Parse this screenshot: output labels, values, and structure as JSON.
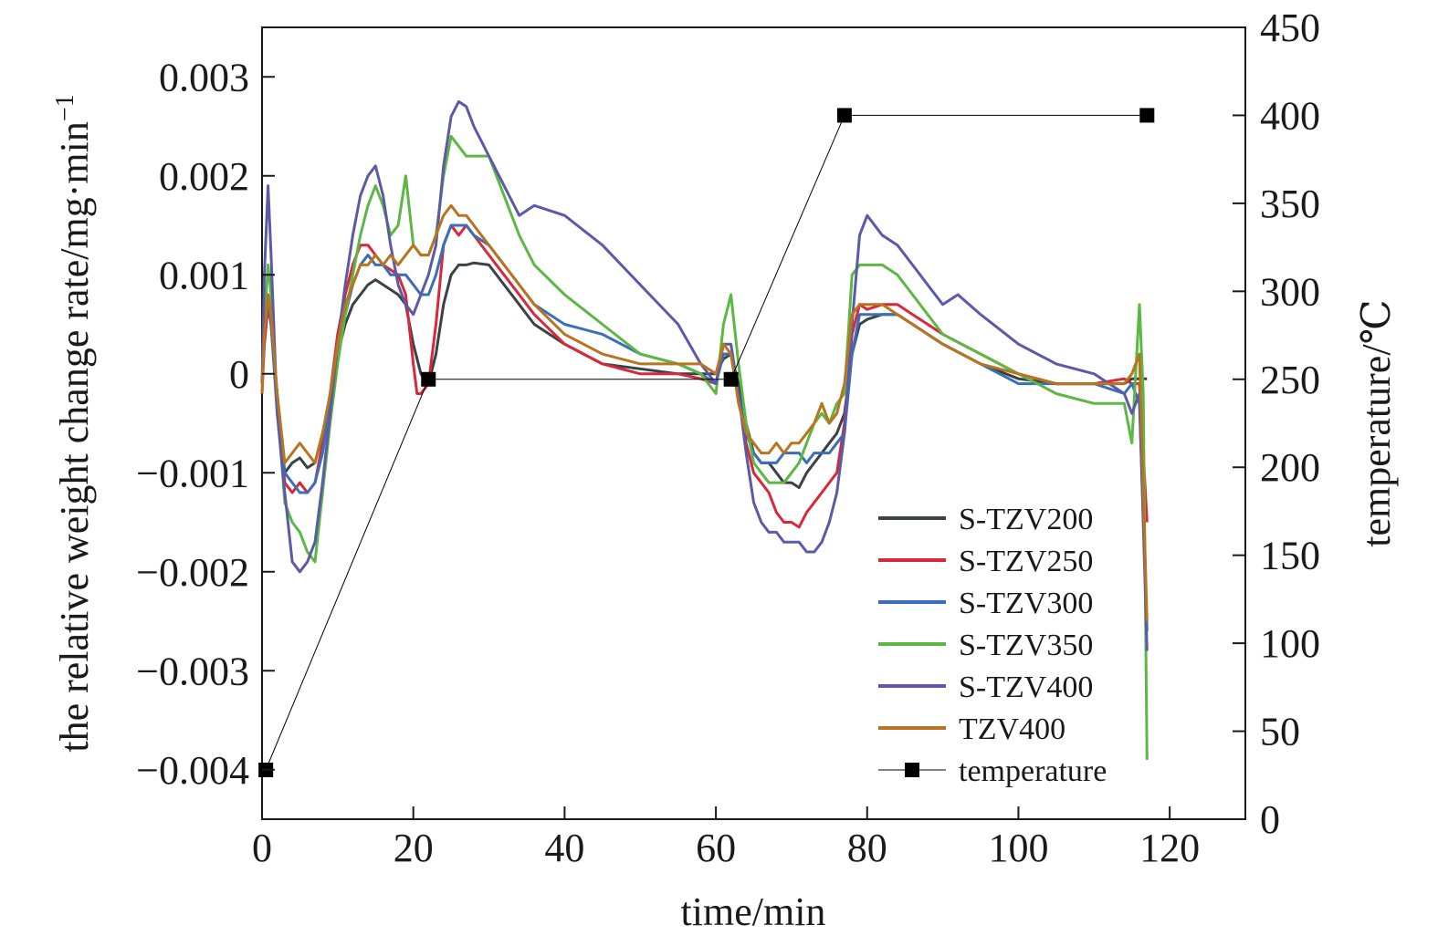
{
  "chart_data": {
    "type": "line",
    "xlabel": "time/min",
    "ylabel": "the relative weight change rate/mg·min",
    "ylabel_sup": "−1",
    "y2label": "temperature/℃",
    "xlim": [
      0,
      130
    ],
    "ylim": [
      -0.0045,
      0.0035
    ],
    "y2lim": [
      0,
      450
    ],
    "x_ticks": [
      0,
      20,
      40,
      60,
      80,
      100,
      120
    ],
    "x_tick_labels": [
      "0",
      "20",
      "40",
      "60",
      "80",
      "100",
      "120"
    ],
    "y_ticks": [
      0.003,
      0.002,
      0.001,
      0,
      -0.001,
      -0.002,
      -0.003,
      -0.004
    ],
    "y_tick_labels": [
      "0.003",
      "0.002",
      "0.001",
      "0",
      "−0.001",
      "−0.002",
      "−0.003",
      "−0.004"
    ],
    "y2_ticks": [
      450,
      400,
      350,
      300,
      250,
      200,
      150,
      100,
      50,
      0
    ],
    "y2_tick_labels": [
      "450",
      "400",
      "350",
      "300",
      "250",
      "200",
      "150",
      "100",
      "50",
      "0"
    ],
    "grid": false,
    "legend_position": "bottom-right",
    "series": [
      {
        "name": "S-TZV200",
        "color": "#3a4246",
        "axis": "left",
        "x": [
          0,
          0.3,
          0.8,
          1.2,
          2,
          3,
          4,
          5,
          6,
          7,
          8,
          9,
          10,
          11,
          12,
          13,
          14,
          15,
          16,
          17,
          18,
          19,
          20,
          21,
          22,
          23,
          24,
          25,
          26,
          27,
          28,
          30,
          32,
          34,
          36,
          40,
          45,
          50,
          55,
          58,
          60,
          61,
          62,
          63,
          64,
          65,
          66,
          67,
          68,
          69,
          70,
          71,
          72,
          73,
          74,
          75,
          76,
          77,
          78,
          79,
          80,
          82,
          84,
          86,
          88,
          90,
          95,
          100,
          105,
          110,
          114,
          115,
          116,
          117
        ],
        "y": [
          -0.0001,
          0.0003,
          0.0007,
          0.0005,
          -0.0002,
          -0.001,
          -0.0009,
          -0.00085,
          -0.00095,
          -0.0009,
          -0.0006,
          -0.0003,
          0.0002,
          0.0005,
          0.0007,
          0.0008,
          0.0009,
          0.00095,
          0.0009,
          0.00085,
          0.0008,
          0.0007,
          0.0003,
          0.0,
          -0.0001,
          0.0002,
          0.0007,
          0.001,
          0.0011,
          0.0011,
          0.00112,
          0.0011,
          0.0009,
          0.0007,
          0.0005,
          0.0003,
          0.0001,
          5e-05,
          0.0,
          0.0,
          0.0,
          0.00015,
          0.0002,
          -0.0001,
          -0.0005,
          -0.0008,
          -0.0009,
          -0.0009,
          -0.001,
          -0.0011,
          -0.0011,
          -0.00115,
          -0.001,
          -0.0009,
          -0.0008,
          -0.0007,
          -0.0006,
          -0.0004,
          0.0002,
          0.0005,
          0.00055,
          0.0006,
          0.0006,
          0.0005,
          0.0004,
          0.0003,
          0.0001,
          -5e-05,
          -0.0001,
          -0.0001,
          -0.0001,
          -5e-05,
          -5e-05,
          -5e-05
        ]
      },
      {
        "name": "S-TZV250",
        "color": "#d8283c",
        "axis": "left",
        "x": [
          0,
          0.3,
          0.8,
          1.2,
          2,
          3,
          4,
          5,
          6,
          7,
          8,
          9,
          10,
          11,
          12,
          13,
          14,
          15,
          16,
          17,
          18,
          19,
          20,
          20.5,
          21,
          22,
          23,
          24,
          25,
          26,
          27,
          28,
          30,
          32,
          34,
          36,
          40,
          45,
          50,
          55,
          58,
          60,
          61,
          62,
          63,
          64,
          65,
          66,
          67,
          68,
          69,
          70,
          71,
          72,
          73,
          74,
          75,
          76,
          77,
          78,
          79,
          80,
          82,
          84,
          86,
          88,
          90,
          95,
          100,
          105,
          110,
          114,
          115,
          116,
          117
        ],
        "y": [
          -0.0002,
          0.0003,
          0.0007,
          0.0005,
          -0.0003,
          -0.0011,
          -0.0012,
          -0.0011,
          -0.0012,
          -0.0011,
          -0.0007,
          -0.0002,
          0.0004,
          0.0008,
          0.0011,
          0.0013,
          0.0013,
          0.0012,
          0.0011,
          0.00105,
          0.001,
          0.0008,
          0.0001,
          -0.0002,
          -0.0002,
          -0.0001,
          0.0005,
          0.0013,
          0.0015,
          0.0014,
          0.0015,
          0.0014,
          0.0012,
          0.001,
          0.0008,
          0.0006,
          0.0003,
          0.0001,
          0.0,
          0.0,
          -5e-05,
          -0.0001,
          0.0002,
          0.0002,
          -0.0002,
          -0.0007,
          -0.001,
          -0.0011,
          -0.0012,
          -0.0014,
          -0.0015,
          -0.0015,
          -0.00155,
          -0.0014,
          -0.0013,
          -0.0012,
          -0.0011,
          -0.001,
          -0.0005,
          0.0004,
          0.0007,
          0.00065,
          0.0007,
          0.0007,
          0.0006,
          0.0005,
          0.0004,
          0.0002,
          0.0,
          -0.0001,
          -0.0001,
          -5e-05,
          -0.0001,
          -0.0001,
          -0.0015
        ]
      },
      {
        "name": "S-TZV300",
        "color": "#3a6fb7",
        "axis": "left",
        "x": [
          0,
          0.3,
          0.8,
          1.2,
          2,
          3,
          4,
          5,
          6,
          7,
          8,
          9,
          10,
          11,
          12,
          13,
          14,
          15,
          16,
          17,
          18,
          19,
          20,
          21,
          22,
          23,
          24,
          25,
          26,
          27,
          28,
          30,
          32,
          34,
          36,
          40,
          45,
          50,
          55,
          58,
          60,
          61,
          62,
          63,
          64,
          65,
          66,
          67,
          68,
          69,
          70,
          71,
          72,
          73,
          74,
          75,
          76,
          77,
          78,
          79,
          80,
          82,
          84,
          86,
          88,
          90,
          95,
          100,
          105,
          110,
          114,
          115,
          116,
          117
        ],
        "y": [
          -0.0001,
          0.0004,
          0.0008,
          0.0005,
          -0.0004,
          -0.001,
          -0.0011,
          -0.0012,
          -0.0012,
          -0.0011,
          -0.0008,
          -0.0003,
          0.0002,
          0.0006,
          0.0009,
          0.0011,
          0.0012,
          0.0011,
          0.0011,
          0.001,
          0.001,
          0.001,
          0.0009,
          0.0008,
          0.0008,
          0.001,
          0.0013,
          0.0015,
          0.0015,
          0.0015,
          0.0014,
          0.0013,
          0.0011,
          0.0009,
          0.0007,
          0.0005,
          0.0004,
          0.0002,
          0.0001,
          0.0,
          -0.0001,
          0.0002,
          0.0002,
          -0.0002,
          -0.0006,
          -0.0008,
          -0.0009,
          -0.0009,
          -0.0009,
          -0.0008,
          -0.0008,
          -0.0008,
          -0.0009,
          -0.0008,
          -0.0008,
          -0.0008,
          -0.0007,
          -0.0006,
          0.0002,
          0.0006,
          0.0006,
          0.0006,
          0.0006,
          0.0005,
          0.0004,
          0.0003,
          0.0001,
          -0.0001,
          -0.0001,
          -0.0001,
          -0.0002,
          -0.0001,
          -0.0003,
          -0.0026
        ]
      },
      {
        "name": "S-TZV350",
        "color": "#5cb843",
        "axis": "left",
        "x": [
          0,
          0.3,
          0.8,
          1.2,
          2,
          3,
          4,
          5,
          6,
          7,
          8,
          9,
          10,
          11,
          12,
          13,
          14,
          15,
          16,
          17,
          18,
          19,
          20,
          21,
          22,
          23,
          24,
          25,
          26,
          27,
          28,
          30,
          32,
          34,
          36,
          40,
          45,
          50,
          55,
          58,
          60,
          61,
          62,
          63,
          64,
          65,
          66,
          67,
          68,
          69,
          70,
          71,
          72,
          73,
          74,
          75,
          76,
          77,
          78,
          79,
          80,
          82,
          84,
          86,
          88,
          90,
          95,
          100,
          105,
          110,
          114,
          115,
          116,
          116.5,
          117
        ],
        "y": [
          -0.0001,
          0.0005,
          0.0011,
          0.0008,
          -0.0003,
          -0.0013,
          -0.0015,
          -0.0016,
          -0.0018,
          -0.0019,
          -0.0012,
          -0.0005,
          0.0001,
          0.0006,
          0.001,
          0.0014,
          0.0017,
          0.0019,
          0.0017,
          0.0014,
          0.0015,
          0.002,
          0.0013,
          0.0012,
          0.0012,
          0.0014,
          0.002,
          0.0024,
          0.0023,
          0.0022,
          0.0022,
          0.0022,
          0.0018,
          0.0014,
          0.0011,
          0.0008,
          0.0005,
          0.0002,
          0.0001,
          0.0,
          -0.0002,
          0.0005,
          0.0008,
          0.0001,
          -0.0005,
          -0.0009,
          -0.001,
          -0.0011,
          -0.0011,
          -0.0011,
          -0.001,
          -0.0009,
          -0.0007,
          -0.0005,
          -0.0004,
          -0.0005,
          -0.0003,
          -0.0002,
          0.001,
          0.0011,
          0.0011,
          0.0011,
          0.001,
          0.0008,
          0.0006,
          0.0004,
          0.0002,
          0.0,
          -0.0002,
          -0.0003,
          -0.0003,
          -0.0007,
          0.0007,
          -0.0002,
          -0.0039
        ]
      },
      {
        "name": "S-TZV400",
        "color": "#5a5aa8",
        "axis": "left",
        "x": [
          0,
          0.3,
          0.8,
          1.2,
          2,
          3,
          4,
          5,
          6,
          7,
          8,
          9,
          10,
          11,
          12,
          13,
          14,
          15,
          16,
          17,
          18,
          19,
          20,
          21,
          22,
          23,
          24,
          25,
          26,
          27,
          28,
          30,
          32,
          34,
          36,
          40,
          45,
          50,
          55,
          58,
          60,
          61,
          62,
          63,
          64,
          65,
          66,
          67,
          68,
          69,
          70,
          71,
          72,
          73,
          74,
          75,
          76,
          77,
          78,
          79,
          80,
          82,
          84,
          86,
          88,
          90,
          92,
          95,
          100,
          105,
          110,
          114,
          115,
          116,
          117
        ],
        "y": [
          -0.0001,
          0.001,
          0.0019,
          0.0012,
          -0.0004,
          -0.0012,
          -0.0019,
          -0.002,
          -0.0019,
          -0.0017,
          -0.0011,
          -0.0004,
          0.0003,
          0.0009,
          0.0014,
          0.0018,
          0.002,
          0.0021,
          0.0018,
          0.0013,
          0.0009,
          0.0007,
          0.0006,
          0.0008,
          0.001,
          0.0013,
          0.0021,
          0.0026,
          0.00275,
          0.0027,
          0.0025,
          0.0022,
          0.0019,
          0.0016,
          0.0017,
          0.0016,
          0.0013,
          0.0009,
          0.0005,
          0.0001,
          -0.0001,
          0.0003,
          0.0003,
          -0.0002,
          -0.0008,
          -0.0013,
          -0.0015,
          -0.0016,
          -0.0016,
          -0.0017,
          -0.0017,
          -0.0017,
          -0.0018,
          -0.0018,
          -0.0017,
          -0.0015,
          -0.0012,
          -0.0006,
          0.0005,
          0.0014,
          0.0016,
          0.0014,
          0.0013,
          0.0011,
          0.0009,
          0.0007,
          0.0008,
          0.0006,
          0.0003,
          0.0001,
          0.0,
          -0.0002,
          -0.0004,
          -0.0002,
          -0.0028
        ]
      },
      {
        "name": "TZV400",
        "color": "#b8741e",
        "axis": "left",
        "x": [
          0,
          0.3,
          0.8,
          1.2,
          2,
          3,
          4,
          5,
          6,
          7,
          8,
          9,
          10,
          11,
          12,
          13,
          14,
          15,
          16,
          17,
          18,
          19,
          20,
          21,
          22,
          23,
          24,
          25,
          26,
          27,
          28,
          30,
          32,
          34,
          36,
          40,
          45,
          50,
          55,
          58,
          60,
          61,
          62,
          63,
          64,
          65,
          66,
          67,
          68,
          69,
          70,
          71,
          72,
          73,
          74,
          75,
          76,
          77,
          78,
          79,
          80,
          82,
          84,
          86,
          88,
          90,
          95,
          100,
          105,
          110,
          114,
          115,
          116,
          117
        ],
        "y": [
          -0.0002,
          0.0004,
          0.0008,
          0.0006,
          -0.0002,
          -0.0009,
          -0.0008,
          -0.0007,
          -0.0008,
          -0.0009,
          -0.0006,
          -0.0002,
          0.0003,
          0.0007,
          0.0009,
          0.0011,
          0.0011,
          0.0012,
          0.0011,
          0.0012,
          0.0011,
          0.0012,
          0.0013,
          0.0012,
          0.0012,
          0.0014,
          0.0016,
          0.0017,
          0.0016,
          0.0016,
          0.0015,
          0.0013,
          0.0011,
          0.0009,
          0.0007,
          0.0004,
          0.0002,
          0.0001,
          0.0001,
          0.0001,
          0.0,
          0.0003,
          0.0002,
          -0.0003,
          -0.0006,
          -0.0007,
          -0.0008,
          -0.0008,
          -0.0007,
          -0.0008,
          -0.0007,
          -0.0007,
          -0.0006,
          -0.0005,
          -0.0003,
          -0.0005,
          -0.0004,
          -0.0001,
          0.0006,
          0.0007,
          0.0007,
          0.0007,
          0.0006,
          0.0005,
          0.0004,
          0.0003,
          0.0001,
          0.0,
          -0.0001,
          -0.0001,
          -0.0001,
          0.0,
          0.0002,
          -0.0025
        ]
      },
      {
        "name": "temperature",
        "color": "#000000",
        "axis": "right",
        "marker": "square",
        "x": [
          0.5,
          22,
          62,
          77,
          117
        ],
        "y": [
          28,
          250,
          250,
          400,
          400
        ]
      }
    ]
  }
}
